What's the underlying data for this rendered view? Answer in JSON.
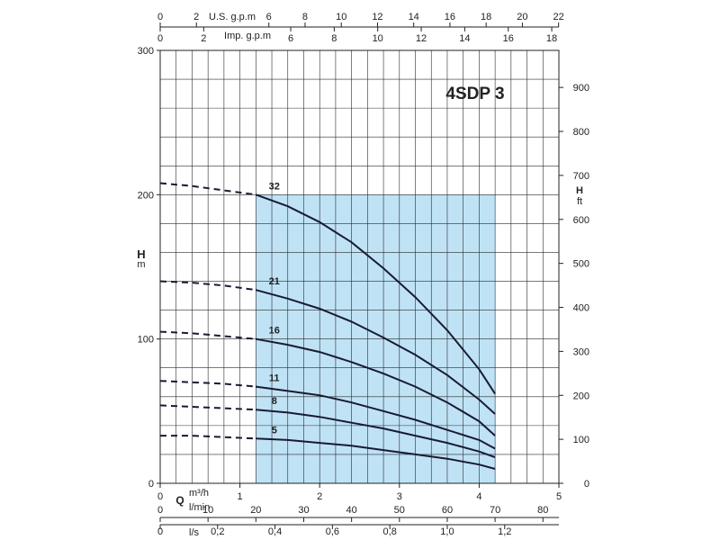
{
  "chart_data": {
    "type": "line",
    "title": "4SDP 3",
    "series_label_note": "",
    "x": [
      1.2,
      1.6,
      2.0,
      2.4,
      2.8,
      3.2,
      3.6,
      4.0,
      4.2
    ],
    "dashed_x": [
      0.0,
      0.4,
      0.8,
      1.2
    ],
    "series": [
      {
        "name": "32",
        "values": [
          200,
          192,
          181,
          167,
          149,
          129,
          106,
          79,
          62
        ],
        "dashed_values": [
          208,
          206,
          203,
          200
        ]
      },
      {
        "name": "21",
        "values": [
          134,
          128,
          121,
          112,
          101,
          89,
          75,
          58,
          48
        ],
        "dashed_values": [
          140,
          139,
          137,
          134
        ]
      },
      {
        "name": "16",
        "values": [
          100,
          96,
          91,
          84,
          76,
          67,
          56,
          43,
          33
        ],
        "dashed_values": [
          105,
          104,
          102,
          100
        ]
      },
      {
        "name": "11",
        "values": [
          67,
          64,
          61,
          56,
          50,
          44,
          37,
          30,
          24
        ],
        "dashed_values": [
          71,
          70,
          69,
          67
        ]
      },
      {
        "name": "8",
        "values": [
          51,
          49,
          46,
          42,
          38,
          33,
          28,
          22,
          18
        ],
        "dashed_values": [
          54,
          53,
          52,
          51
        ]
      },
      {
        "name": "5",
        "values": [
          31,
          30,
          28,
          26,
          23,
          20,
          17,
          13,
          10
        ],
        "dashed_values": [
          33,
          33,
          32,
          31
        ]
      }
    ],
    "operating_range": [
      1.2,
      4.2
    ],
    "xlim": [
      0,
      5
    ],
    "ylim": [
      0,
      300
    ],
    "ylabel": "H",
    "ylabel_unit": "m",
    "ylabel_right": "H",
    "ylabel_right_unit": "ft",
    "xlabel": "Q",
    "xlabel_unit_1": "m³/h",
    "xlabel_unit_2": "l/min",
    "yticks_left": [
      "0",
      "100",
      "200",
      "300"
    ],
    "yticks_right": [
      "0",
      "100",
      "200",
      "300",
      "400",
      "500",
      "600",
      "700",
      "800",
      "900"
    ],
    "xticks_m3h": [
      "0",
      "1",
      "2",
      "3",
      "4",
      "5"
    ],
    "xticks_lmin": [
      "0",
      "10",
      "20",
      "30",
      "40",
      "50",
      "60",
      "70",
      "80"
    ],
    "xticks_ls": [
      "0",
      "0,2",
      "0,4",
      "0,6",
      "0,8",
      "1,0",
      "1,2"
    ],
    "ls_label": "l/s",
    "top_axis_us_label": "U.S. g.p.m",
    "top_axis_us_ticks": [
      "0",
      "2",
      "6",
      "8",
      "10",
      "12",
      "14",
      "16",
      "18",
      "20",
      "22"
    ],
    "top_axis_imp_label": "Imp. g.p.m",
    "top_axis_imp_ticks": [
      "0",
      "2",
      "6",
      "8",
      "10",
      "12",
      "14",
      "16",
      "18"
    ],
    "grid": true,
    "colors": {
      "curve": "#1a1a33",
      "range_fill": "#bfe3f5",
      "grid": "#2a2a2a"
    }
  }
}
